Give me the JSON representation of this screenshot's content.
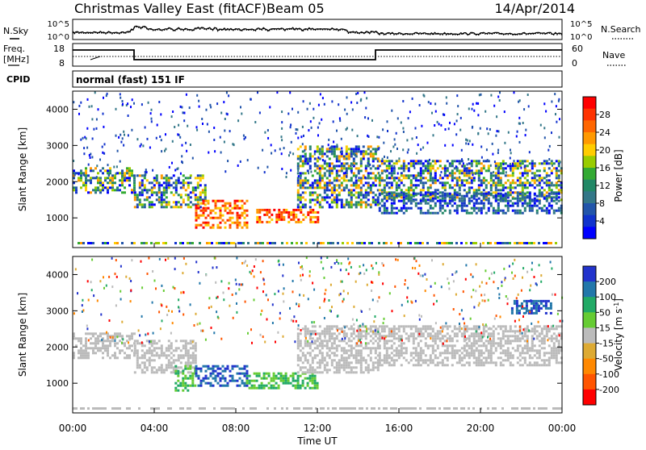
{
  "header": {
    "station": "Christmas Valley East (fitACF)",
    "beam": "Beam 05",
    "date": "14/Apr/2014"
  },
  "noise_panel": {
    "left_label": "N.Sky",
    "right_label": "N.Search",
    "ticks_left": [
      "10^5",
      "10^0"
    ],
    "ticks_right": [
      "10^5",
      "10^0"
    ]
  },
  "freq_panel": {
    "left_label_line1": "Freq.",
    "left_label_line2": "[MHz]",
    "right_label": "Nave",
    "ticks_left": [
      "18",
      "8"
    ],
    "ticks_right": [
      "60",
      "0"
    ]
  },
  "cpid": {
    "label": "CPID",
    "mode": "normal (fast) 151 IF"
  },
  "power_colorbar": {
    "title": "Power [dB]",
    "ticks": [
      "28",
      "24",
      "20",
      "16",
      "12",
      "8",
      "4"
    ],
    "colors": [
      "#ff0000",
      "#ff3300",
      "#ff6600",
      "#ff9900",
      "#ffcc00",
      "#99cc00",
      "#33aa33",
      "#228866",
      "#337788",
      "#2255aa",
      "#1133cc",
      "#0000ff"
    ]
  },
  "velocity_colorbar": {
    "title": "Velocity [m s",
    "title_sup": "-1",
    "title_end": "]",
    "ticks": [
      "200",
      "100",
      "50",
      "15",
      "-15",
      "-50",
      "-100",
      "-200"
    ],
    "colors": [
      "#2233cc",
      "#2277aa",
      "#22aa66",
      "#66cc33",
      "#bbbbbb",
      "#ddaa33",
      "#ff8800",
      "#ff5500",
      "#ff0000"
    ]
  },
  "chart_data": [
    {
      "type": "heatmap",
      "name": "Power",
      "ylabel": "Slant Range [km]",
      "yticks": [
        1000,
        2000,
        3000,
        4000
      ],
      "ylim": [
        180,
        4500
      ],
      "xlim": [
        0,
        24
      ],
      "bands": [
        {
          "t": [
            0,
            3
          ],
          "r": [
            1700,
            2400
          ],
          "level": "medium"
        },
        {
          "t": [
            3,
            6.5
          ],
          "r": [
            1300,
            2200
          ],
          "level": "medium"
        },
        {
          "t": [
            6,
            8.5
          ],
          "r": [
            700,
            1500
          ],
          "level": "high"
        },
        {
          "t": [
            9,
            12
          ],
          "r": [
            850,
            1250
          ],
          "level": "high"
        },
        {
          "t": [
            11,
            15
          ],
          "r": [
            1300,
            3000
          ],
          "level": "medium"
        },
        {
          "t": [
            15,
            24
          ],
          "r": [
            1500,
            2600
          ],
          "level": "medium"
        },
        {
          "t": [
            15,
            24
          ],
          "r": [
            1100,
            1700
          ],
          "level": "low"
        }
      ]
    },
    {
      "type": "heatmap",
      "name": "Velocity",
      "ylabel": "Slant Range [km]",
      "xlabel": "Time UT",
      "xticks": [
        "00:00",
        "04:00",
        "08:00",
        "12:00",
        "16:00",
        "20:00",
        "00:00"
      ],
      "yticks": [
        1000,
        2000,
        3000,
        4000
      ],
      "ylim": [
        180,
        4500
      ],
      "xlim": [
        0,
        24
      ],
      "bands": [
        {
          "t": [
            0,
            3
          ],
          "r": [
            1700,
            2400
          ],
          "v": "-15 to 15"
        },
        {
          "t": [
            3,
            6
          ],
          "r": [
            1300,
            2200
          ],
          "v": "-15 to 15"
        },
        {
          "t": [
            5,
            6
          ],
          "r": [
            800,
            1500
          ],
          "v": "15 to 50"
        },
        {
          "t": [
            6,
            8.5
          ],
          "r": [
            900,
            1500
          ],
          "v": "100 to 200"
        },
        {
          "t": [
            8.5,
            12
          ],
          "r": [
            850,
            1300
          ],
          "v": "15 to 50"
        },
        {
          "t": [
            11,
            15
          ],
          "r": [
            1300,
            2600
          ],
          "v": "-15 to 15"
        },
        {
          "t": [
            15,
            24
          ],
          "r": [
            1500,
            2600
          ],
          "v": "-15 to 15"
        },
        {
          "t": [
            21.5,
            23.5
          ],
          "r": [
            2900,
            3300
          ],
          "v": "100 to 200"
        }
      ]
    }
  ]
}
